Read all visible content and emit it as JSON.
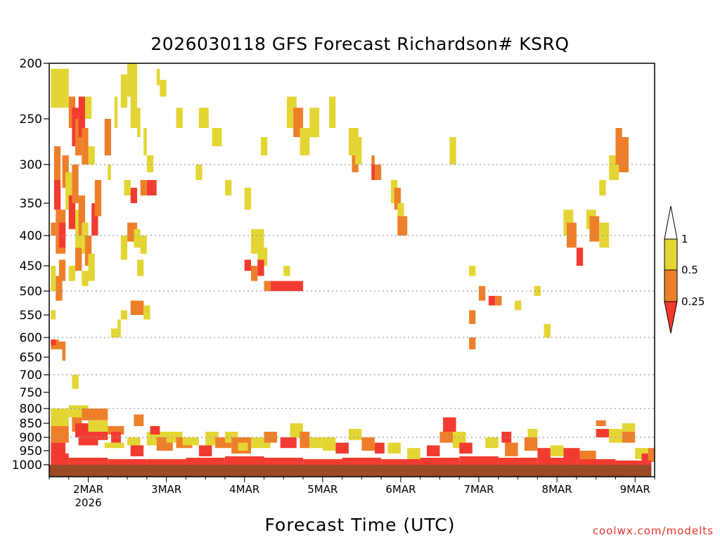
{
  "title": "2026030118 GFS Forecast Richardson# KSRQ",
  "x_axis_title": "Forecast Time (UTC)",
  "credit": "coolwx.com/modelts",
  "colors": {
    "ri_lt_0_25": "#f23b30",
    "ri_0_25_0_5": "#ee7f2a",
    "ri_0_5_1": "#e3d634",
    "ground": "#9a4a24",
    "grid": "#9a9a9a"
  },
  "chart_data": {
    "type": "heatmap",
    "title": "2026030118 GFS Forecast Richardson# KSRQ",
    "xlabel": "Forecast Time (UTC)",
    "ylabel": "",
    "y_scale": "pressure (hPa, inverted)",
    "ylim": [
      1030,
      200
    ],
    "y_ticks": [
      200,
      250,
      300,
      350,
      400,
      450,
      500,
      550,
      600,
      650,
      700,
      750,
      800,
      850,
      900,
      950,
      1000
    ],
    "x_range_hours": [
      -6,
      180
    ],
    "x_ticks": [
      {
        "hour": 6,
        "label": "2MAR",
        "sublabel": "2026"
      },
      {
        "hour": 30,
        "label": "3MAR"
      },
      {
        "hour": 54,
        "label": "4MAR"
      },
      {
        "hour": 78,
        "label": "5MAR"
      },
      {
        "hour": 102,
        "label": "6MAR"
      },
      {
        "hour": 126,
        "label": "7MAR"
      },
      {
        "hour": 150,
        "label": "8MAR"
      },
      {
        "hour": 174,
        "label": "9MAR"
      }
    ],
    "grid_levels": [
      300,
      400,
      500,
      600,
      700,
      800,
      900
    ],
    "legend": {
      "placement": "right",
      "labels": [
        "1",
        "0.5",
        "0.25"
      ],
      "bins": [
        {
          "range": "0.5-1",
          "color": "#e3d634"
        },
        {
          "range": "0.25-0.5",
          "color": "#ee7f2a"
        },
        {
          "range": "<0.25",
          "color": "#f23b30"
        }
      ]
    },
    "cells": [
      [
        -5.5,
        0,
        205,
        240,
        2
      ],
      [
        -4.5,
        -2.5,
        280,
        320,
        1
      ],
      [
        -4.5,
        -2.5,
        320,
        360,
        0
      ],
      [
        -4,
        -1,
        360,
        430,
        1
      ],
      [
        -3,
        -1,
        380,
        420,
        0
      ],
      [
        -5.5,
        -4,
        380,
        400,
        1
      ],
      [
        -5.5,
        -4,
        450,
        500,
        2
      ],
      [
        -4,
        -2,
        470,
        520,
        1
      ],
      [
        -5.5,
        -4,
        540,
        560,
        2
      ],
      [
        -5.5,
        -3,
        605,
        630,
        1
      ],
      [
        -3,
        -1,
        610,
        630,
        1
      ],
      [
        -5.5,
        -4,
        605,
        620,
        0
      ],
      [
        -2,
        -1,
        620,
        660,
        1
      ],
      [
        1,
        3,
        700,
        740,
        2
      ],
      [
        0,
        2,
        230,
        260,
        1
      ],
      [
        1,
        3,
        240,
        280,
        0
      ],
      [
        2,
        4,
        250,
        290,
        1
      ],
      [
        3,
        5,
        230,
        270,
        0
      ],
      [
        4,
        6,
        260,
        300,
        1
      ],
      [
        5,
        7,
        230,
        250,
        2
      ],
      [
        6,
        8,
        280,
        300,
        2
      ],
      [
        -2,
        0,
        290,
        330,
        1
      ],
      [
        -1,
        1,
        310,
        360,
        2
      ],
      [
        0,
        2,
        340,
        390,
        0
      ],
      [
        1,
        3,
        300,
        350,
        1
      ],
      [
        2,
        4,
        360,
        420,
        2
      ],
      [
        3,
        5,
        340,
        400,
        1
      ],
      [
        4,
        6,
        380,
        430,
        2
      ],
      [
        5,
        7,
        400,
        450,
        1
      ],
      [
        6,
        8,
        430,
        480,
        2
      ],
      [
        7,
        9,
        350,
        400,
        0
      ],
      [
        8,
        10,
        320,
        370,
        1
      ],
      [
        -3,
        -1,
        440,
        480,
        1
      ],
      [
        0,
        2,
        450,
        480,
        2
      ],
      [
        2,
        4,
        420,
        460,
        1
      ],
      [
        4,
        6,
        460,
        490,
        2
      ],
      [
        11,
        13,
        250,
        290,
        1
      ],
      [
        12,
        13,
        300,
        320,
        2
      ],
      [
        14,
        15,
        230,
        260,
        2
      ],
      [
        18,
        21,
        200,
        230,
        2
      ],
      [
        19,
        21,
        230,
        260,
        2
      ],
      [
        16,
        18,
        210,
        240,
        2
      ],
      [
        21,
        22,
        240,
        270,
        2
      ],
      [
        23,
        24,
        260,
        290,
        2
      ],
      [
        24,
        26,
        290,
        310,
        2
      ],
      [
        27,
        28,
        205,
        220,
        2
      ],
      [
        28,
        30,
        215,
        230,
        2
      ],
      [
        33,
        35,
        240,
        260,
        2
      ],
      [
        17,
        19,
        320,
        340,
        2
      ],
      [
        19,
        21,
        330,
        350,
        0
      ],
      [
        22,
        24,
        320,
        340,
        1
      ],
      [
        24,
        26,
        320,
        340,
        0
      ],
      [
        26,
        27,
        320,
        340,
        0
      ],
      [
        18,
        21,
        380,
        410,
        1
      ],
      [
        20,
        22,
        390,
        420,
        2
      ],
      [
        22,
        24,
        400,
        430,
        2
      ],
      [
        16,
        18,
        400,
        440,
        2
      ],
      [
        21,
        23,
        440,
        470,
        2
      ],
      [
        19,
        21,
        520,
        550,
        1
      ],
      [
        21,
        23,
        520,
        550,
        1
      ],
      [
        23,
        25,
        530,
        560,
        2
      ],
      [
        16,
        18,
        540,
        560,
        2
      ],
      [
        15,
        16,
        560,
        600,
        2
      ],
      [
        13,
        15,
        580,
        600,
        2
      ],
      [
        39,
        41,
        300,
        320,
        2
      ],
      [
        40,
        43,
        240,
        260,
        2
      ],
      [
        44,
        47,
        260,
        280,
        2
      ],
      [
        48,
        50,
        320,
        340,
        2
      ],
      [
        54,
        56,
        330,
        360,
        2
      ],
      [
        59,
        61,
        270,
        290,
        2
      ],
      [
        56,
        60,
        390,
        430,
        2
      ],
      [
        58,
        61,
        420,
        450,
        2
      ],
      [
        54,
        56,
        440,
        460,
        0
      ],
      [
        56,
        58,
        450,
        480,
        1
      ],
      [
        58,
        60,
        440,
        470,
        0
      ],
      [
        60,
        62,
        480,
        500,
        1
      ],
      [
        62,
        72,
        480,
        500,
        0
      ],
      [
        66,
        68,
        450,
        470,
        2
      ],
      [
        67,
        70,
        230,
        260,
        2
      ],
      [
        69,
        72,
        240,
        270,
        1
      ],
      [
        71,
        74,
        260,
        290,
        2
      ],
      [
        74,
        77,
        240,
        270,
        2
      ],
      [
        80,
        82,
        230,
        260,
        2
      ],
      [
        86,
        89,
        260,
        290,
        2
      ],
      [
        87,
        89,
        290,
        310,
        1
      ],
      [
        88,
        90,
        270,
        300,
        2
      ],
      [
        93,
        94,
        290,
        300,
        1
      ],
      [
        93,
        95,
        300,
        320,
        0
      ],
      [
        94,
        96,
        300,
        320,
        1
      ],
      [
        99,
        101,
        320,
        350,
        2
      ],
      [
        100,
        102,
        330,
        360,
        1
      ],
      [
        101,
        103,
        350,
        370,
        2
      ],
      [
        101,
        104,
        370,
        400,
        1
      ],
      [
        117,
        119,
        270,
        300,
        2
      ],
      [
        123,
        125,
        450,
        470,
        2
      ],
      [
        126,
        128,
        490,
        520,
        1
      ],
      [
        129,
        131,
        510,
        530,
        0
      ],
      [
        131,
        133,
        510,
        530,
        1
      ],
      [
        123,
        125,
        540,
        570,
        1
      ],
      [
        123,
        125,
        600,
        630,
        1
      ],
      [
        137,
        139,
        520,
        540,
        2
      ],
      [
        143,
        145,
        490,
        510,
        2
      ],
      [
        146,
        148,
        570,
        600,
        2
      ],
      [
        152,
        155,
        360,
        400,
        2
      ],
      [
        153,
        156,
        380,
        420,
        1
      ],
      [
        156,
        158,
        420,
        450,
        0
      ],
      [
        159,
        162,
        360,
        390,
        2
      ],
      [
        160,
        163,
        370,
        410,
        1
      ],
      [
        163,
        166,
        380,
        420,
        2
      ],
      [
        163,
        165,
        320,
        340,
        2
      ],
      [
        166,
        169,
        290,
        320,
        2
      ],
      [
        168,
        170,
        260,
        300,
        1
      ],
      [
        169,
        172,
        270,
        310,
        1
      ],
      [
        -6,
        179,
        1000,
        1030,
        3
      ]
    ],
    "boundary_layer": [
      [
        -5.5,
        0,
        800,
        860,
        2
      ],
      [
        -5.5,
        0,
        860,
        920,
        1
      ],
      [
        -5.5,
        -1,
        920,
        980,
        0
      ],
      [
        0,
        6,
        790,
        830,
        2
      ],
      [
        1,
        4,
        830,
        880,
        1
      ],
      [
        2,
        8,
        850,
        900,
        0
      ],
      [
        3,
        9,
        880,
        930,
        0
      ],
      [
        4,
        12,
        800,
        840,
        1
      ],
      [
        6,
        12,
        840,
        880,
        2
      ],
      [
        6,
        12,
        880,
        910,
        0
      ],
      [
        12,
        17,
        860,
        890,
        1
      ],
      [
        13,
        16,
        880,
        920,
        0
      ],
      [
        11,
        17,
        920,
        940,
        2
      ],
      [
        18,
        22,
        900,
        930,
        2
      ],
      [
        19,
        23,
        930,
        970,
        0
      ],
      [
        20,
        23,
        820,
        860,
        1
      ],
      [
        24,
        30,
        880,
        930,
        2
      ],
      [
        25,
        28,
        860,
        890,
        0
      ],
      [
        27,
        32,
        900,
        950,
        1
      ],
      [
        30,
        35,
        880,
        920,
        2
      ],
      [
        33,
        38,
        900,
        940,
        1
      ],
      [
        35,
        40,
        900,
        930,
        2
      ],
      [
        40,
        44,
        930,
        970,
        0
      ],
      [
        42,
        46,
        880,
        930,
        2
      ],
      [
        45,
        50,
        900,
        940,
        1
      ],
      [
        48,
        52,
        880,
        920,
        2
      ],
      [
        50,
        56,
        900,
        960,
        1
      ],
      [
        52,
        55,
        920,
        950,
        2
      ],
      [
        56,
        62,
        900,
        940,
        2
      ],
      [
        60,
        64,
        880,
        920,
        1
      ],
      [
        65,
        70,
        900,
        940,
        0
      ],
      [
        68,
        72,
        850,
        900,
        2
      ],
      [
        71,
        74,
        880,
        940,
        1
      ],
      [
        74,
        78,
        900,
        940,
        2
      ],
      [
        78,
        82,
        900,
        950,
        2
      ],
      [
        82,
        86,
        920,
        960,
        0
      ],
      [
        86,
        90,
        870,
        910,
        2
      ],
      [
        90,
        94,
        900,
        950,
        1
      ],
      [
        94,
        97,
        920,
        960,
        0
      ],
      [
        98,
        102,
        920,
        960,
        2
      ],
      [
        104,
        108,
        940,
        980,
        2
      ],
      [
        110,
        114,
        930,
        970,
        0
      ],
      [
        114,
        118,
        880,
        920,
        1
      ],
      [
        115,
        119,
        830,
        880,
        0
      ],
      [
        118,
        122,
        880,
        940,
        2
      ],
      [
        120,
        124,
        920,
        960,
        0
      ],
      [
        128,
        132,
        900,
        940,
        2
      ],
      [
        133,
        136,
        880,
        920,
        0
      ],
      [
        134,
        138,
        920,
        970,
        1
      ],
      [
        140,
        144,
        900,
        950,
        1
      ],
      [
        141,
        144,
        870,
        900,
        2
      ],
      [
        144,
        148,
        940,
        980,
        0
      ],
      [
        148,
        152,
        930,
        970,
        2
      ],
      [
        152,
        157,
        940,
        980,
        0
      ],
      [
        157,
        162,
        950,
        980,
        1
      ],
      [
        162,
        166,
        870,
        900,
        0
      ],
      [
        162,
        165,
        840,
        860,
        1
      ],
      [
        166,
        170,
        870,
        920,
        2
      ],
      [
        170,
        174,
        850,
        880,
        2
      ],
      [
        170,
        174,
        880,
        920,
        1
      ],
      [
        174,
        178,
        940,
        980,
        2
      ],
      [
        176,
        179,
        960,
        990,
        0
      ],
      [
        178,
        180,
        940,
        990,
        1
      ]
    ],
    "surface_layer": [
      [
        -5.5,
        0,
        960,
        1000,
        0
      ],
      [
        0,
        12,
        975,
        1000,
        0
      ],
      [
        12,
        24,
        980,
        1000,
        0
      ],
      [
        24,
        36,
        980,
        1000,
        0
      ],
      [
        36,
        48,
        975,
        1000,
        0
      ],
      [
        48,
        60,
        970,
        1000,
        0
      ],
      [
        60,
        72,
        975,
        1000,
        0
      ],
      [
        72,
        84,
        980,
        1000,
        0
      ],
      [
        84,
        96,
        975,
        1000,
        0
      ],
      [
        96,
        108,
        980,
        1000,
        0
      ],
      [
        108,
        120,
        975,
        1000,
        0
      ],
      [
        120,
        132,
        970,
        1000,
        0
      ],
      [
        132,
        144,
        975,
        1000,
        0
      ],
      [
        144,
        156,
        975,
        1000,
        0
      ],
      [
        156,
        168,
        980,
        1000,
        0
      ],
      [
        168,
        179,
        985,
        1000,
        0
      ]
    ]
  }
}
